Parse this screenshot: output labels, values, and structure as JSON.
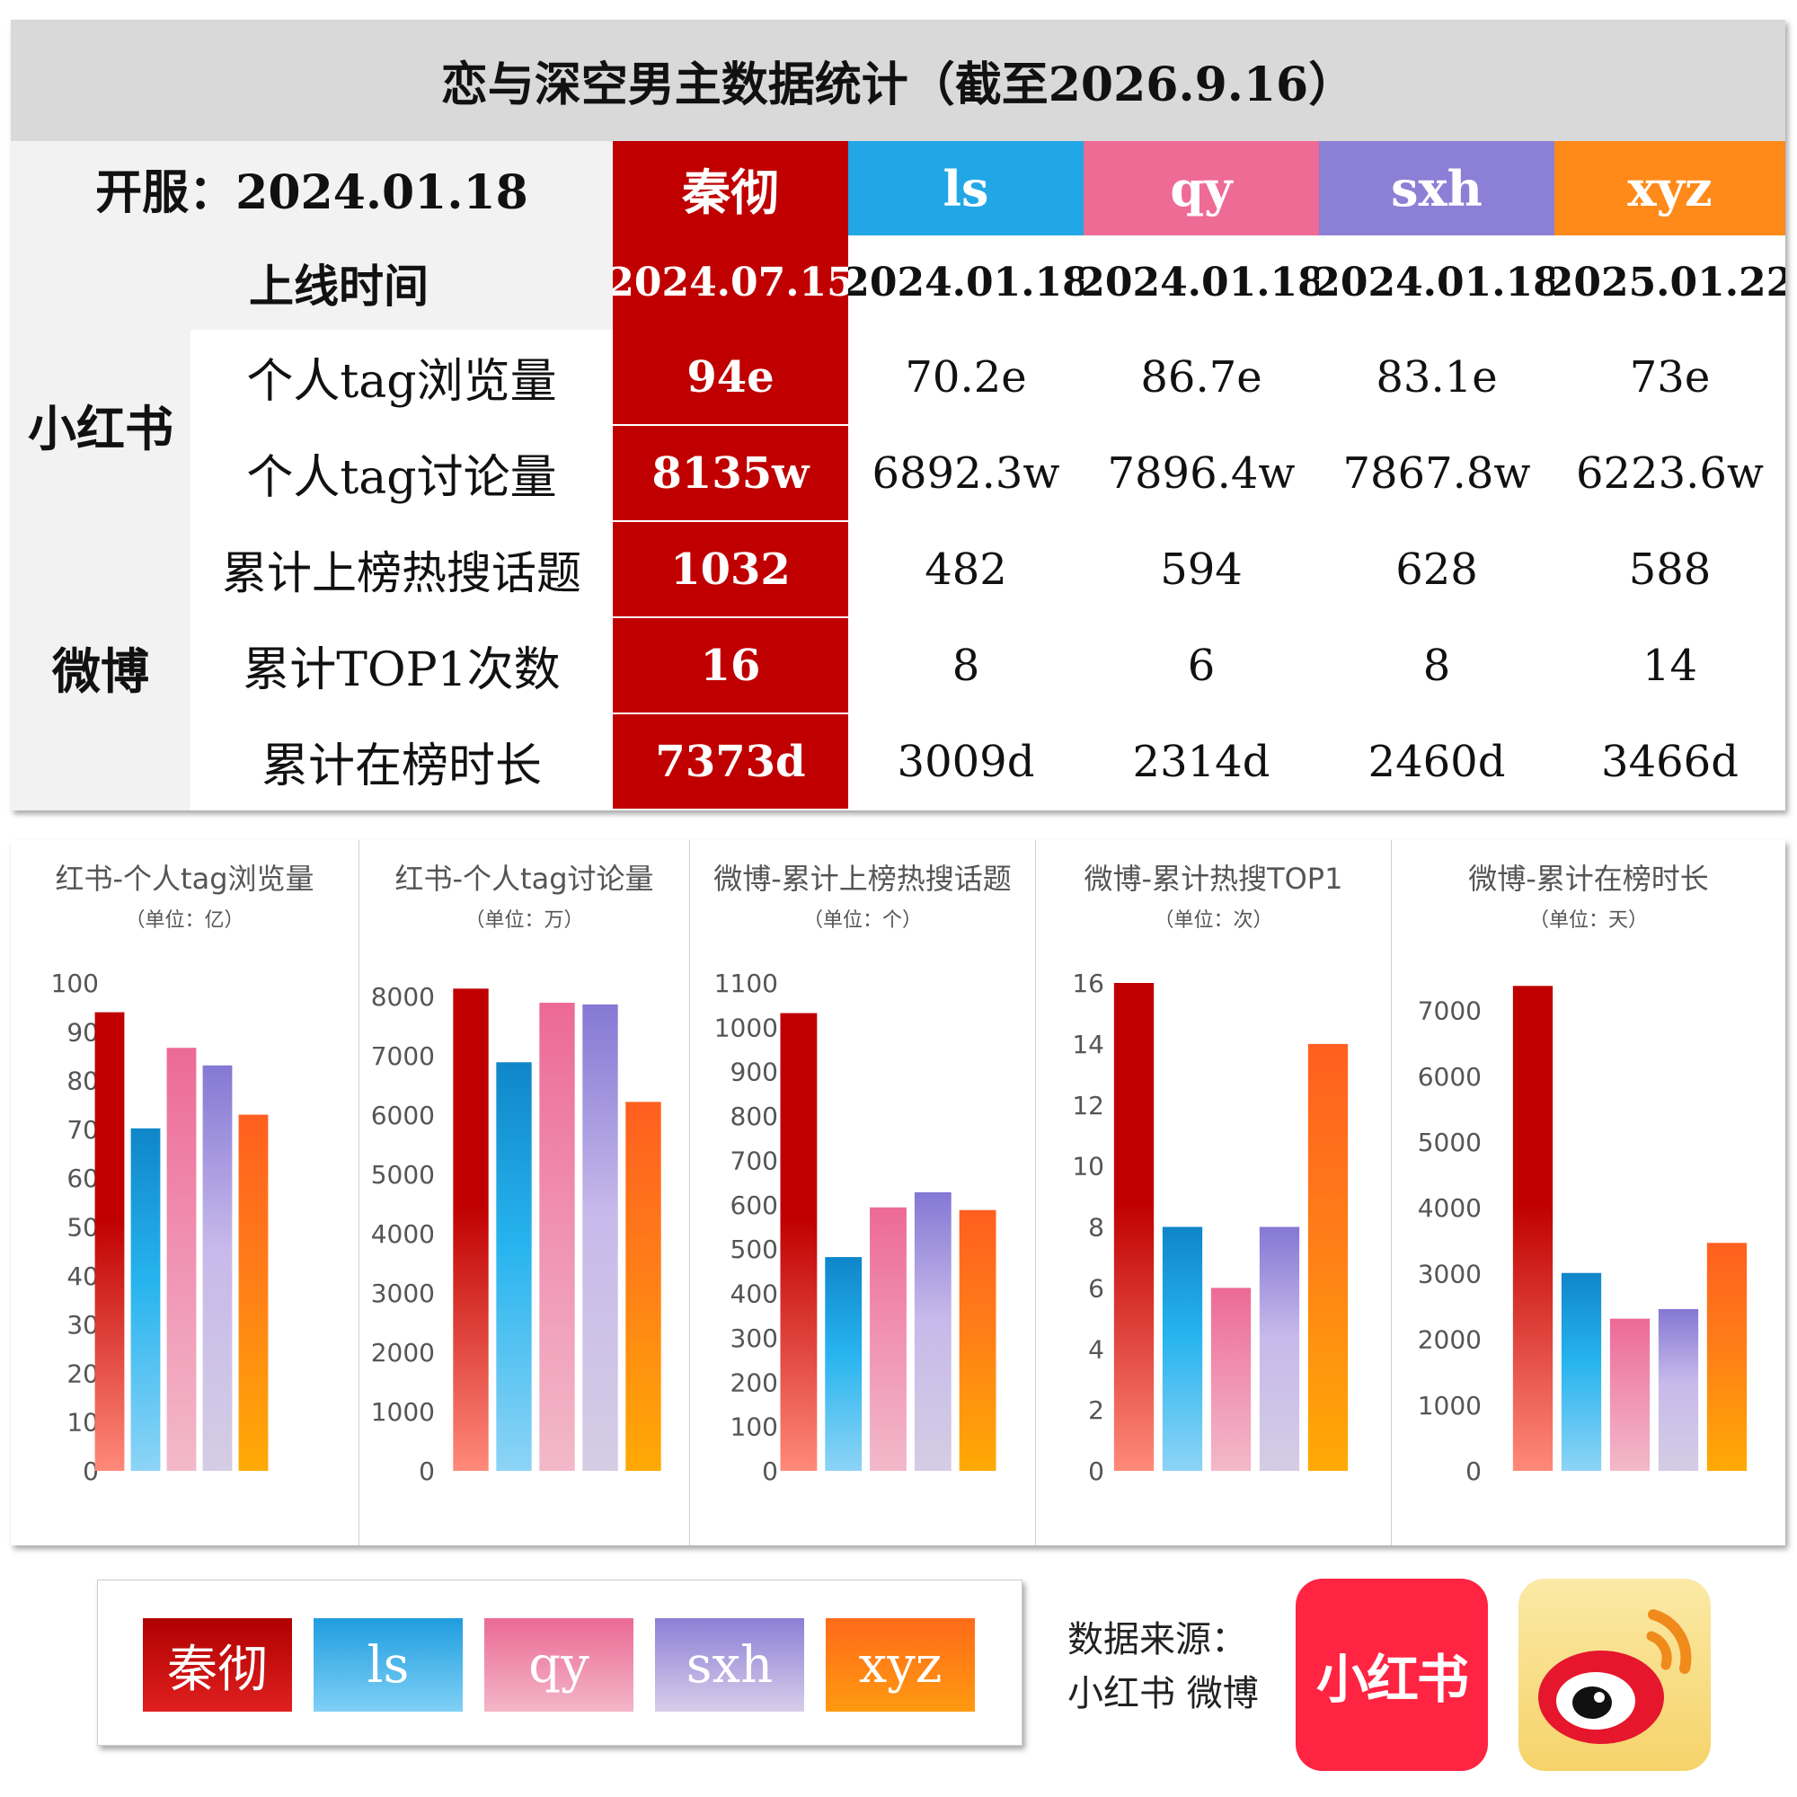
{
  "title": "恋与深空男主数据统计（截至2026.9.16）",
  "table": {
    "open_label": "开服：2024.01.18",
    "launch_label": "上线时间",
    "section_xhs": "小红书",
    "section_weibo": "微博",
    "metrics": [
      "个人tag浏览量",
      "个人tag讨论量",
      "累计上榜热搜话题",
      "累计TOP1次数",
      "累计在榜时长"
    ],
    "characters": [
      {
        "name": "秦彻",
        "launch": "2024.07.15",
        "values": [
          "94e",
          "8135w",
          "1032",
          "16",
          "7373d"
        ],
        "color": "#c00000"
      },
      {
        "name": "ls",
        "launch": "2024.01.18",
        "values": [
          "70.2e",
          "6892.3w",
          "482",
          "8",
          "3009d"
        ],
        "color": "#22a7e6"
      },
      {
        "name": "qy",
        "launch": "2024.01.18",
        "values": [
          "86.7e",
          "7896.4w",
          "594",
          "6",
          "2314d"
        ],
        "color": "#ee6b96"
      },
      {
        "name": "sxh",
        "launch": "2024.01.18",
        "values": [
          "83.1e",
          "7867.8w",
          "628",
          "8",
          "2460d"
        ],
        "color": "#8c7fd6"
      },
      {
        "name": "xyz",
        "launch": "2025.01.22",
        "values": [
          "73e",
          "6223.6w",
          "588",
          "14",
          "3466d"
        ],
        "color": "#ff8a1a"
      }
    ]
  },
  "chart_data": [
    {
      "type": "bar",
      "title": "红书-个人tag浏览量",
      "unit": "（单位：亿）",
      "categories": [
        "秦彻",
        "ls",
        "qy",
        "sxh",
        "xyz"
      ],
      "values": [
        94,
        70.2,
        86.7,
        83.1,
        73
      ],
      "ylim": [
        0,
        100
      ],
      "yticks": [
        0,
        10,
        20,
        30,
        40,
        50,
        60,
        70,
        80,
        90,
        100
      ],
      "grid": false
    },
    {
      "type": "bar",
      "title": "红书-个人tag讨论量",
      "unit": "（单位：万）",
      "categories": [
        "秦彻",
        "ls",
        "qy",
        "sxh",
        "xyz"
      ],
      "values": [
        8135,
        6892.3,
        7896.4,
        7867.8,
        6223.6
      ],
      "ylim": [
        0,
        8200
      ],
      "yticks": [
        0,
        1000,
        2000,
        3000,
        4000,
        5000,
        6000,
        7000,
        8000
      ],
      "grid": false
    },
    {
      "type": "bar",
      "title": "微博-累计上榜热搜话题",
      "unit": "（单位：个）",
      "categories": [
        "秦彻",
        "ls",
        "qy",
        "sxh",
        "xyz"
      ],
      "values": [
        1032,
        482,
        594,
        628,
        588
      ],
      "ylim": [
        0,
        1100
      ],
      "yticks": [
        0,
        100,
        200,
        300,
        400,
        500,
        600,
        700,
        800,
        900,
        1000,
        1100
      ],
      "grid": false
    },
    {
      "type": "bar",
      "title": "微博-累计热搜TOP1",
      "unit": "（单位：次）",
      "categories": [
        "秦彻",
        "ls",
        "qy",
        "sxh",
        "xyz"
      ],
      "values": [
        16,
        8,
        6,
        8,
        14
      ],
      "ylim": [
        0,
        16
      ],
      "yticks": [
        0,
        2,
        4,
        6,
        8,
        10,
        12,
        14,
        16
      ],
      "grid": false
    },
    {
      "type": "bar",
      "title": "微博-累计在榜时长",
      "unit": "（单位：天）",
      "categories": [
        "秦彻",
        "ls",
        "qy",
        "sxh",
        "xyz"
      ],
      "values": [
        7373,
        3009,
        2314,
        2460,
        3466
      ],
      "ylim": [
        0,
        7500
      ],
      "yticks": [
        0,
        1000,
        2000,
        3000,
        4000,
        5000,
        6000,
        7000
      ],
      "grid": false
    }
  ],
  "legend": [
    "秦彻",
    "ls",
    "qy",
    "sxh",
    "xyz"
  ],
  "source": {
    "label": "数据来源：",
    "platforms": "小红书 微博",
    "xhs_logo": "小红书",
    "weibo_logo": "weibo-logo-icon"
  }
}
